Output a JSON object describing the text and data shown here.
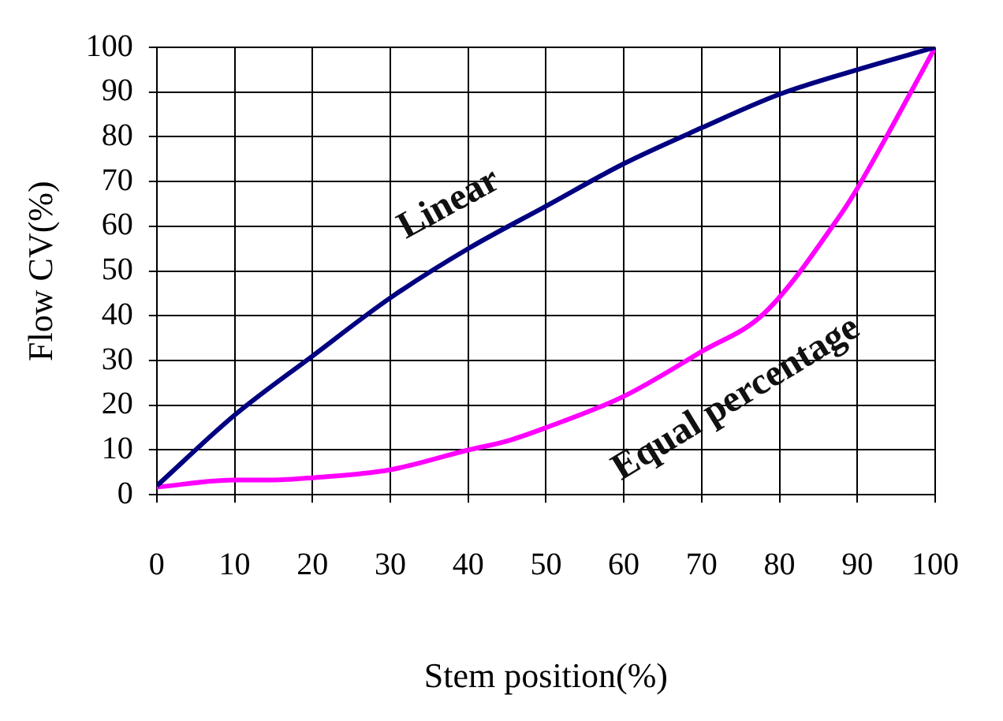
{
  "chart_data": {
    "type": "line",
    "xlabel": "Stem position(%)",
    "ylabel": "Flow CV(%)",
    "xlim": [
      0,
      100
    ],
    "xticks": [
      0,
      10,
      20,
      30,
      40,
      50,
      60,
      70,
      80,
      90,
      100
    ],
    "ylim": [
      0,
      100
    ],
    "yticks": [
      0,
      10,
      20,
      30,
      40,
      50,
      60,
      70,
      80,
      90,
      100
    ],
    "grid": true,
    "legend": false,
    "marker": "none",
    "line_style": "solid",
    "series": [
      {
        "name": "Linear",
        "color": "#000080",
        "x": [
          0,
          10,
          20,
          30,
          40,
          50,
          60,
          70,
          80,
          90,
          100
        ],
        "values": [
          2,
          17.8,
          31,
          44,
          55,
          64.5,
          74,
          82,
          89.5,
          95,
          100
        ]
      },
      {
        "name": "Equal percentage",
        "color": "#ff00ff",
        "x": [
          0,
          10,
          15,
          20,
          30,
          40,
          45,
          50,
          60,
          70,
          78,
          88,
          90,
          95,
          100
        ],
        "values": [
          1.7,
          3.3,
          3.3,
          3.8,
          5.6,
          10,
          12,
          15,
          22,
          32,
          40.5,
          63,
          68.5,
          84,
          100
        ]
      }
    ]
  }
}
